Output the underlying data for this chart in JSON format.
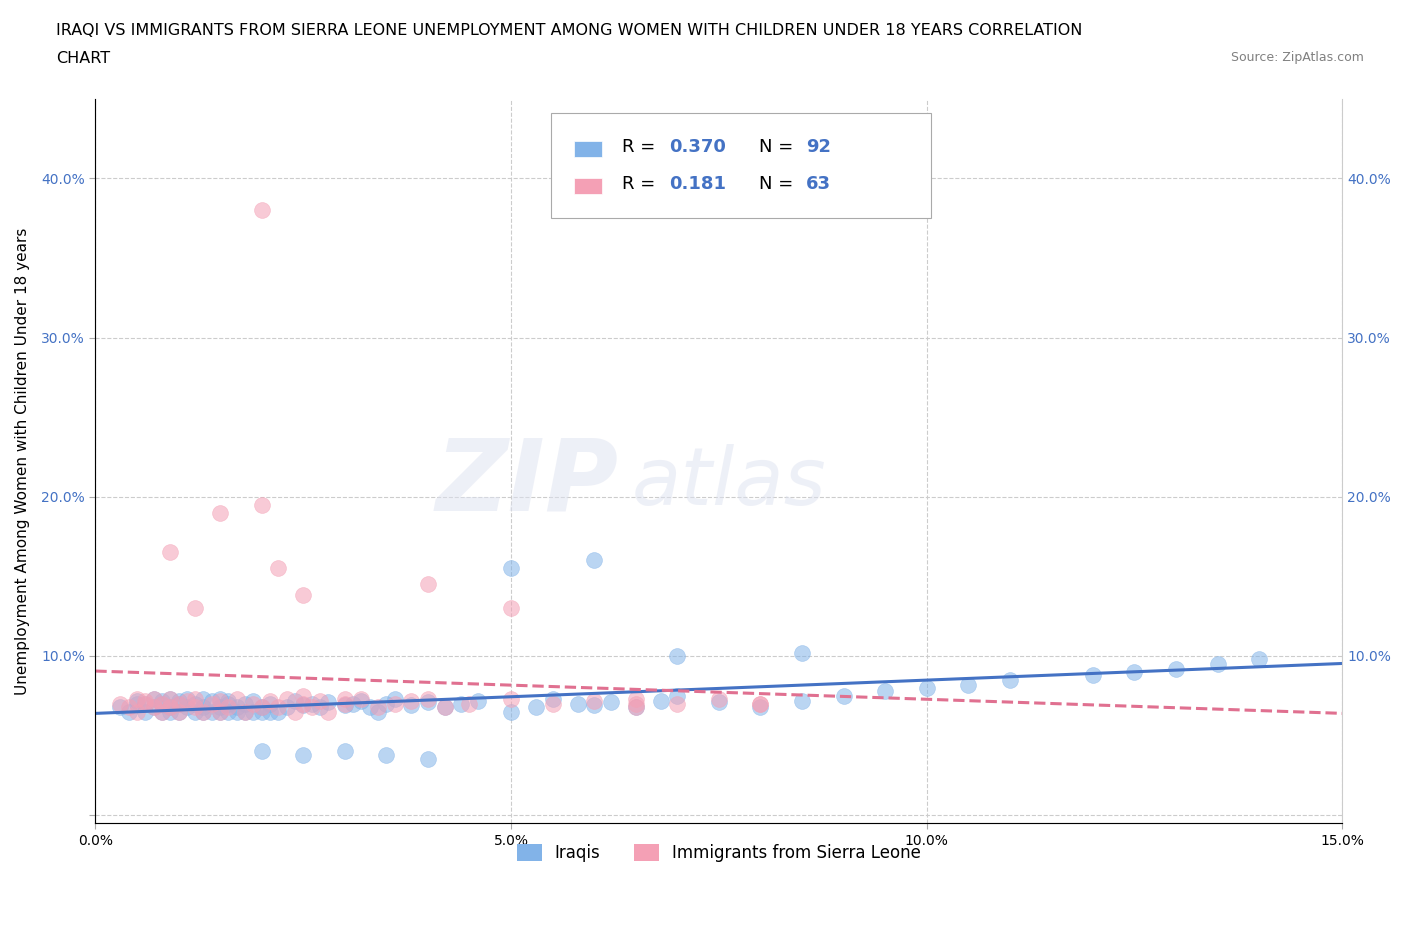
{
  "title_line1": "IRAQI VS IMMIGRANTS FROM SIERRA LEONE UNEMPLOYMENT AMONG WOMEN WITH CHILDREN UNDER 18 YEARS CORRELATION",
  "title_line2": "CHART",
  "source": "Source: ZipAtlas.com",
  "ylabel": "Unemployment Among Women with Children Under 18 years",
  "xlim": [
    0.0,
    0.15
  ],
  "ylim": [
    -0.005,
    0.45
  ],
  "xticks": [
    0.0,
    0.05,
    0.1,
    0.15
  ],
  "yticks": [
    0.0,
    0.1,
    0.2,
    0.3,
    0.4
  ],
  "xtick_labels": [
    "0.0%",
    "5.0%",
    "10.0%",
    "15.0%"
  ],
  "ytick_labels_left": [
    "",
    "10.0%",
    "20.0%",
    "30.0%",
    "40.0%"
  ],
  "ytick_labels_right": [
    "",
    "10.0%",
    "20.0%",
    "30.0%",
    "40.0%"
  ],
  "iraqis_color": "#82b3e8",
  "sierra_leone_color": "#f4a0b5",
  "iraqis_R": 0.37,
  "iraqis_N": 92,
  "sierra_leone_R": 0.181,
  "sierra_leone_N": 63,
  "iraqis_trend_color": "#4472c4",
  "sierra_leone_trend_color": "#e07090",
  "legend_label1": "Iraqis",
  "legend_label2": "Immigrants from Sierra Leone",
  "blue_text_color": "#4472c4",
  "iraqis_x": [
    0.003,
    0.004,
    0.005,
    0.005,
    0.006,
    0.006,
    0.007,
    0.007,
    0.008,
    0.008,
    0.008,
    0.009,
    0.009,
    0.009,
    0.01,
    0.01,
    0.01,
    0.011,
    0.011,
    0.012,
    0.012,
    0.013,
    0.013,
    0.013,
    0.014,
    0.014,
    0.015,
    0.015,
    0.015,
    0.016,
    0.016,
    0.016,
    0.017,
    0.017,
    0.018,
    0.018,
    0.019,
    0.019,
    0.02,
    0.02,
    0.021,
    0.021,
    0.022,
    0.023,
    0.024,
    0.025,
    0.026,
    0.027,
    0.028,
    0.03,
    0.031,
    0.032,
    0.033,
    0.034,
    0.035,
    0.036,
    0.038,
    0.04,
    0.042,
    0.044,
    0.046,
    0.05,
    0.053,
    0.055,
    0.058,
    0.06,
    0.062,
    0.065,
    0.068,
    0.07,
    0.075,
    0.08,
    0.085,
    0.09,
    0.095,
    0.1,
    0.105,
    0.11,
    0.12,
    0.125,
    0.13,
    0.135,
    0.14,
    0.02,
    0.025,
    0.03,
    0.035,
    0.04,
    0.05,
    0.06,
    0.07,
    0.085
  ],
  "iraqis_y": [
    0.068,
    0.065,
    0.07,
    0.072,
    0.065,
    0.07,
    0.068,
    0.073,
    0.065,
    0.07,
    0.072,
    0.065,
    0.068,
    0.073,
    0.065,
    0.07,
    0.072,
    0.068,
    0.073,
    0.065,
    0.07,
    0.065,
    0.068,
    0.073,
    0.065,
    0.072,
    0.065,
    0.068,
    0.073,
    0.065,
    0.07,
    0.072,
    0.065,
    0.068,
    0.065,
    0.07,
    0.065,
    0.072,
    0.065,
    0.068,
    0.065,
    0.07,
    0.065,
    0.068,
    0.072,
    0.069,
    0.07,
    0.068,
    0.071,
    0.069,
    0.07,
    0.072,
    0.068,
    0.065,
    0.07,
    0.073,
    0.069,
    0.071,
    0.068,
    0.07,
    0.072,
    0.065,
    0.068,
    0.073,
    0.07,
    0.069,
    0.071,
    0.068,
    0.072,
    0.075,
    0.071,
    0.068,
    0.072,
    0.075,
    0.078,
    0.08,
    0.082,
    0.085,
    0.088,
    0.09,
    0.092,
    0.095,
    0.098,
    0.04,
    0.038,
    0.04,
    0.038,
    0.035,
    0.155,
    0.16,
    0.1,
    0.102
  ],
  "sierra_leone_x": [
    0.003,
    0.004,
    0.005,
    0.005,
    0.006,
    0.006,
    0.007,
    0.007,
    0.008,
    0.008,
    0.009,
    0.009,
    0.01,
    0.01,
    0.011,
    0.012,
    0.012,
    0.013,
    0.014,
    0.015,
    0.015,
    0.016,
    0.017,
    0.018,
    0.019,
    0.02,
    0.021,
    0.022,
    0.023,
    0.024,
    0.025,
    0.026,
    0.027,
    0.028,
    0.03,
    0.032,
    0.034,
    0.036,
    0.038,
    0.04,
    0.042,
    0.045,
    0.05,
    0.055,
    0.06,
    0.065,
    0.07,
    0.075,
    0.08,
    0.009,
    0.012,
    0.015,
    0.02,
    0.022,
    0.025,
    0.04,
    0.05,
    0.065,
    0.02,
    0.025,
    0.03,
    0.065,
    0.08
  ],
  "sierra_leone_y": [
    0.07,
    0.068,
    0.065,
    0.073,
    0.07,
    0.072,
    0.068,
    0.073,
    0.065,
    0.07,
    0.068,
    0.073,
    0.065,
    0.07,
    0.072,
    0.068,
    0.073,
    0.065,
    0.07,
    0.065,
    0.072,
    0.068,
    0.073,
    0.065,
    0.07,
    0.068,
    0.072,
    0.068,
    0.073,
    0.065,
    0.07,
    0.068,
    0.072,
    0.065,
    0.07,
    0.073,
    0.068,
    0.07,
    0.072,
    0.073,
    0.068,
    0.07,
    0.073,
    0.07,
    0.072,
    0.073,
    0.07,
    0.073,
    0.07,
    0.165,
    0.13,
    0.19,
    0.195,
    0.155,
    0.138,
    0.145,
    0.13,
    0.07,
    0.38,
    0.075,
    0.073,
    0.068,
    0.07
  ]
}
